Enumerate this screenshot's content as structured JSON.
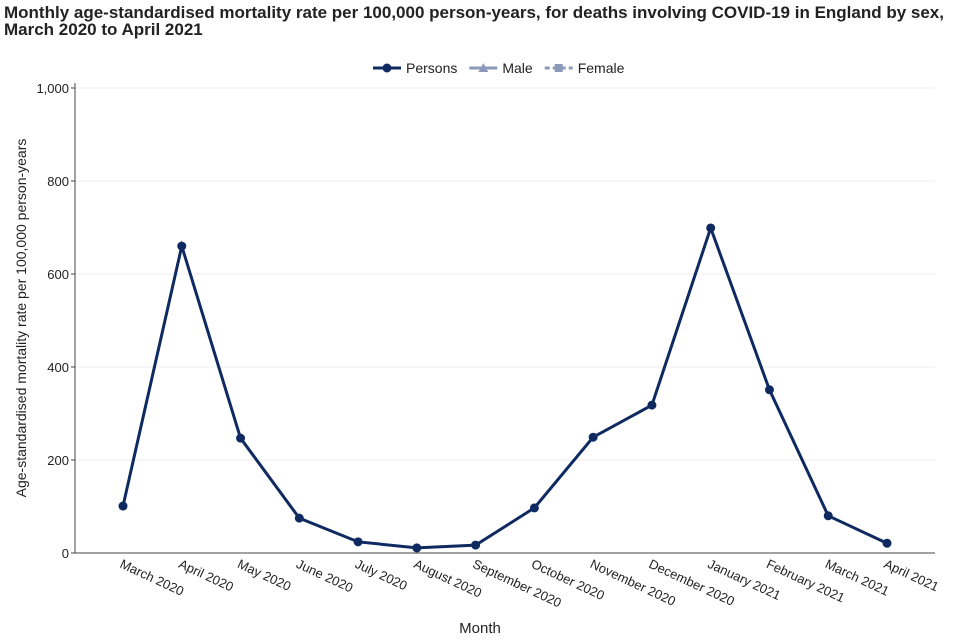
{
  "chart_data": {
    "type": "line",
    "title": "Monthly age-standardised mortality rate per 100,000 person-years, for deaths involving COVID-19 in England by sex, March 2020 to April 2021",
    "x_label": "Month",
    "y_label": "Age-standardised mortality rate per 100,000 person-years",
    "categories": [
      "March 2020",
      "April 2020",
      "May 2020",
      "June 2020",
      "July 2020",
      "August 2020",
      "September 2020",
      "October 2020",
      "November 2020",
      "December 2020",
      "January 2021",
      "February 2021",
      "March 2021",
      "April 2021"
    ],
    "series": [
      {
        "name": "Persons",
        "color": "#0f2a60",
        "marker": "circle",
        "hidden": false,
        "values": [
          101,
          660,
          247,
          75,
          24,
          11,
          17,
          97,
          249,
          318,
          699,
          351,
          80,
          21
        ]
      },
      {
        "name": "Male",
        "color": "#8a9ab8",
        "marker": "triangle",
        "hidden": true,
        "values": [
          null,
          null,
          null,
          null,
          null,
          null,
          null,
          null,
          null,
          null,
          null,
          null,
          null,
          null
        ]
      },
      {
        "name": "Female",
        "color": "#8a9ab8",
        "marker": "square",
        "hidden": true,
        "values": [
          null,
          null,
          null,
          null,
          null,
          null,
          null,
          null,
          null,
          null,
          null,
          null,
          null,
          null
        ]
      }
    ],
    "ylim": [
      0,
      1000
    ],
    "yticks": [
      0,
      200,
      400,
      600,
      800,
      {
        "value": 1000,
        "label": "1,000"
      }
    ],
    "grid": true,
    "legend": "top"
  }
}
